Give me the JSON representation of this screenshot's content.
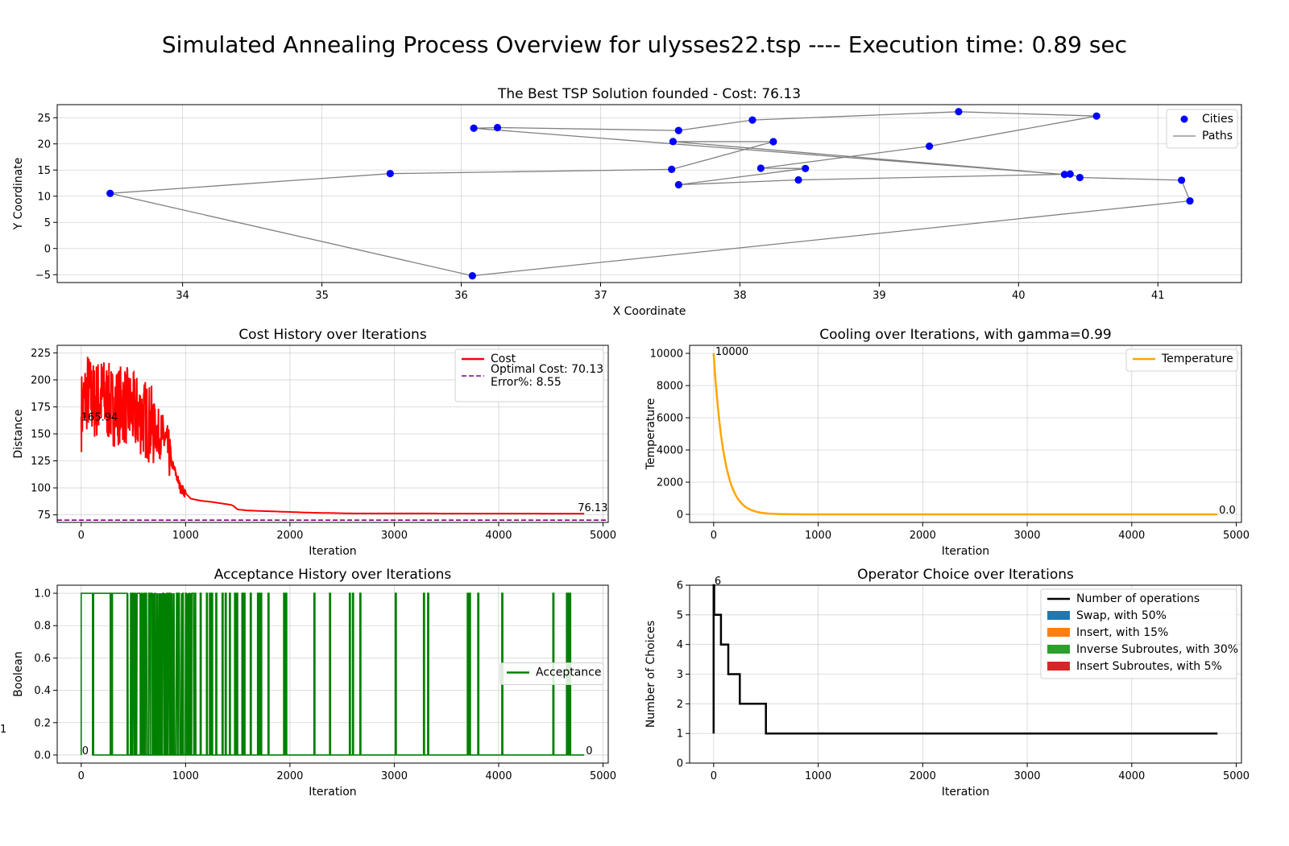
{
  "suptitle": "Simulated Annealing Process Overview for ulysses22.tsp ---- Execution time: 0.89 sec",
  "chart_data": [
    {
      "id": "tsp",
      "type": "scatter",
      "title": "The Best TSP Solution founded - Cost: 76.13",
      "xlabel": "X Coordinate",
      "ylabel": "Y Coordinate",
      "xlim": [
        33.1,
        41.6
      ],
      "ylim": [
        -6.5,
        27.5
      ],
      "xticks": [
        34,
        35,
        36,
        37,
        38,
        39,
        40,
        41
      ],
      "yticks": [
        -5,
        0,
        5,
        10,
        15,
        20,
        25
      ],
      "grid": true,
      "legend_position": "top-right",
      "legend": [
        "Cities",
        "Paths"
      ],
      "colors": {
        "cities": "#0000ff",
        "paths": "#808080"
      },
      "tour": [
        [
          36.26,
          23.12
        ],
        [
          37.56,
          22.56
        ],
        [
          38.09,
          24.56
        ],
        [
          39.57,
          26.15
        ],
        [
          40.56,
          25.32
        ],
        [
          39.36,
          19.56
        ],
        [
          38.15,
          15.35
        ],
        [
          38.47,
          15.3
        ],
        [
          37.56,
          12.19
        ],
        [
          38.42,
          13.11
        ],
        [
          40.37,
          14.23
        ],
        [
          40.44,
          13.57
        ],
        [
          41.17,
          13.05
        ],
        [
          41.23,
          9.1
        ],
        [
          36.08,
          -5.21
        ],
        [
          33.48,
          10.54
        ],
        [
          35.49,
          14.32
        ],
        [
          37.51,
          15.13
        ],
        [
          38.24,
          20.42
        ],
        [
          37.52,
          20.44
        ],
        [
          40.33,
          14.15
        ],
        [
          36.09,
          23.0
        ]
      ],
      "extra_path": [
        [
          40.33,
          14.15
        ],
        [
          36.09,
          23.0
        ],
        [
          36.26,
          23.12
        ]
      ]
    },
    {
      "id": "cost",
      "type": "line",
      "title": "Cost History over Iterations",
      "xlabel": "Iteration",
      "ylabel": "Distance",
      "xlim": [
        -230,
        5050
      ],
      "ylim": [
        68,
        232
      ],
      "xticks": [
        0,
        1000,
        2000,
        3000,
        4000,
        5000
      ],
      "yticks": [
        75,
        100,
        125,
        150,
        175,
        200,
        225
      ],
      "grid": true,
      "legend_position": "top-right",
      "series": [
        {
          "name": "Cost",
          "color": "#ff0000"
        },
        {
          "name": "Optimal Cost: 70.13\nError%: 8.55",
          "color": "#800080",
          "value": 70.13,
          "style": "dashed"
        }
      ],
      "start_label": "165.94",
      "end_label": "76.13",
      "start_value": 165.94,
      "end_value": 76.13,
      "iterations": 4820,
      "profile": [
        [
          0,
          170
        ],
        [
          60,
          190
        ],
        [
          120,
          180
        ],
        [
          200,
          185
        ],
        [
          300,
          175
        ],
        [
          400,
          178
        ],
        [
          500,
          170
        ],
        [
          600,
          165
        ],
        [
          700,
          155
        ],
        [
          800,
          145
        ],
        [
          860,
          125
        ],
        [
          900,
          115
        ],
        [
          950,
          100
        ],
        [
          1000,
          95
        ],
        [
          1050,
          90
        ],
        [
          1150,
          88
        ],
        [
          1250,
          87
        ],
        [
          1450,
          84
        ],
        [
          1500,
          80
        ],
        [
          1600,
          79
        ],
        [
          1900,
          78
        ],
        [
          2200,
          77
        ],
        [
          2600,
          76.3
        ],
        [
          4820,
          76.13
        ]
      ]
    },
    {
      "id": "cool",
      "type": "line",
      "title": "Cooling over Iterations, with gamma=0.99",
      "xlabel": "Iteration",
      "ylabel": "Temperature",
      "xlim": [
        -230,
        5050
      ],
      "ylim": [
        -500,
        10500
      ],
      "xticks": [
        0,
        1000,
        2000,
        3000,
        4000,
        5000
      ],
      "yticks": [
        0,
        2000,
        4000,
        6000,
        8000,
        10000
      ],
      "grid": true,
      "legend_position": "top-right",
      "series": [
        {
          "name": "Temperature",
          "color": "#ffa500"
        }
      ],
      "t0": 10000,
      "gamma": 0.99,
      "iterations": 4820,
      "start_label": "10000",
      "end_label": "0.0"
    },
    {
      "id": "accept",
      "type": "line",
      "title": "Acceptance History over Iterations",
      "xlabel": "Iteration",
      "ylabel": "Boolean",
      "xlim": [
        -230,
        5050
      ],
      "ylim": [
        -0.05,
        1.05
      ],
      "xticks": [
        0,
        1000,
        2000,
        3000,
        4000,
        5000
      ],
      "yticks": [
        0.0,
        0.2,
        0.4,
        0.6,
        0.8,
        1.0
      ],
      "grid": true,
      "legend_position": "center-right",
      "series": [
        {
          "name": "Acceptance",
          "color": "#008000"
        }
      ],
      "start_label": "0",
      "end_label": "0",
      "iterations": 4820,
      "dense_range": [
        440,
        1100
      ],
      "full_range": [
        0,
        440
      ],
      "spikes": [
        110,
        280,
        290,
        1140,
        1200,
        1230,
        1250,
        1290,
        1350,
        1380,
        1420,
        1470,
        1490,
        1540,
        1560,
        1620,
        1690,
        1700,
        1720,
        1790,
        1940,
        1960,
        2230,
        2380,
        2570,
        2600,
        2670,
        3010,
        3280,
        3320,
        3700,
        3720,
        3800,
        4030,
        4520,
        4650,
        4660,
        4670,
        4680
      ]
    },
    {
      "id": "ops",
      "type": "bar",
      "title": "Operator Choice over Iterations",
      "xlabel": "Iteration",
      "ylabel": "Number of Choices",
      "xlim": [
        -230,
        5050
      ],
      "ylim": [
        0,
        6
      ],
      "xticks": [
        0,
        1000,
        2000,
        3000,
        4000,
        5000
      ],
      "yticks": [
        0,
        1,
        2,
        3,
        4,
        5,
        6
      ],
      "grid": true,
      "legend_position": "top-right",
      "series": [
        {
          "name": "Number of operations",
          "color": "#000000"
        },
        {
          "name": "Swap, with 50%",
          "color": "#1f77b4"
        },
        {
          "name": "Insert, with 15%",
          "color": "#ff7f0e"
        },
        {
          "name": "Inverse Subroutes, with 30%",
          "color": "#2ca02c"
        },
        {
          "name": "Insert Subroutes, with 5%",
          "color": "#d62728"
        }
      ],
      "steps": [
        [
          0,
          6
        ],
        [
          5,
          5
        ],
        [
          70,
          4
        ],
        [
          140,
          3
        ],
        [
          250,
          2
        ],
        [
          500,
          1
        ],
        [
          4820,
          1
        ]
      ],
      "start_label": "6",
      "end_label": "1"
    }
  ]
}
